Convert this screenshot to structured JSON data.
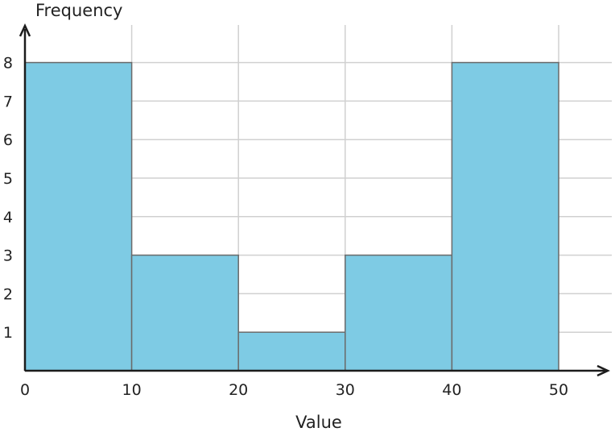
{
  "chart_data": {
    "type": "bar",
    "subtype": "histogram",
    "xlabel": "Value",
    "ylabel": "Frequency",
    "bins": [
      {
        "from": 0,
        "to": 10,
        "count": 8
      },
      {
        "from": 10,
        "to": 20,
        "count": 3
      },
      {
        "from": 20,
        "to": 30,
        "count": 1
      },
      {
        "from": 30,
        "to": 40,
        "count": 3
      },
      {
        "from": 40,
        "to": 50,
        "count": 8
      }
    ],
    "x_ticks": [
      0,
      10,
      20,
      30,
      40,
      50
    ],
    "y_ticks": [
      1,
      2,
      3,
      4,
      5,
      6,
      7,
      8
    ],
    "xlim": [
      0,
      55
    ],
    "ylim": [
      0,
      9
    ],
    "grid": true,
    "colors": {
      "bar": "#7ecbe4",
      "edge": "#6b6b6b",
      "grid": "#d0d0d0",
      "axis": "#1c1c1c"
    }
  }
}
